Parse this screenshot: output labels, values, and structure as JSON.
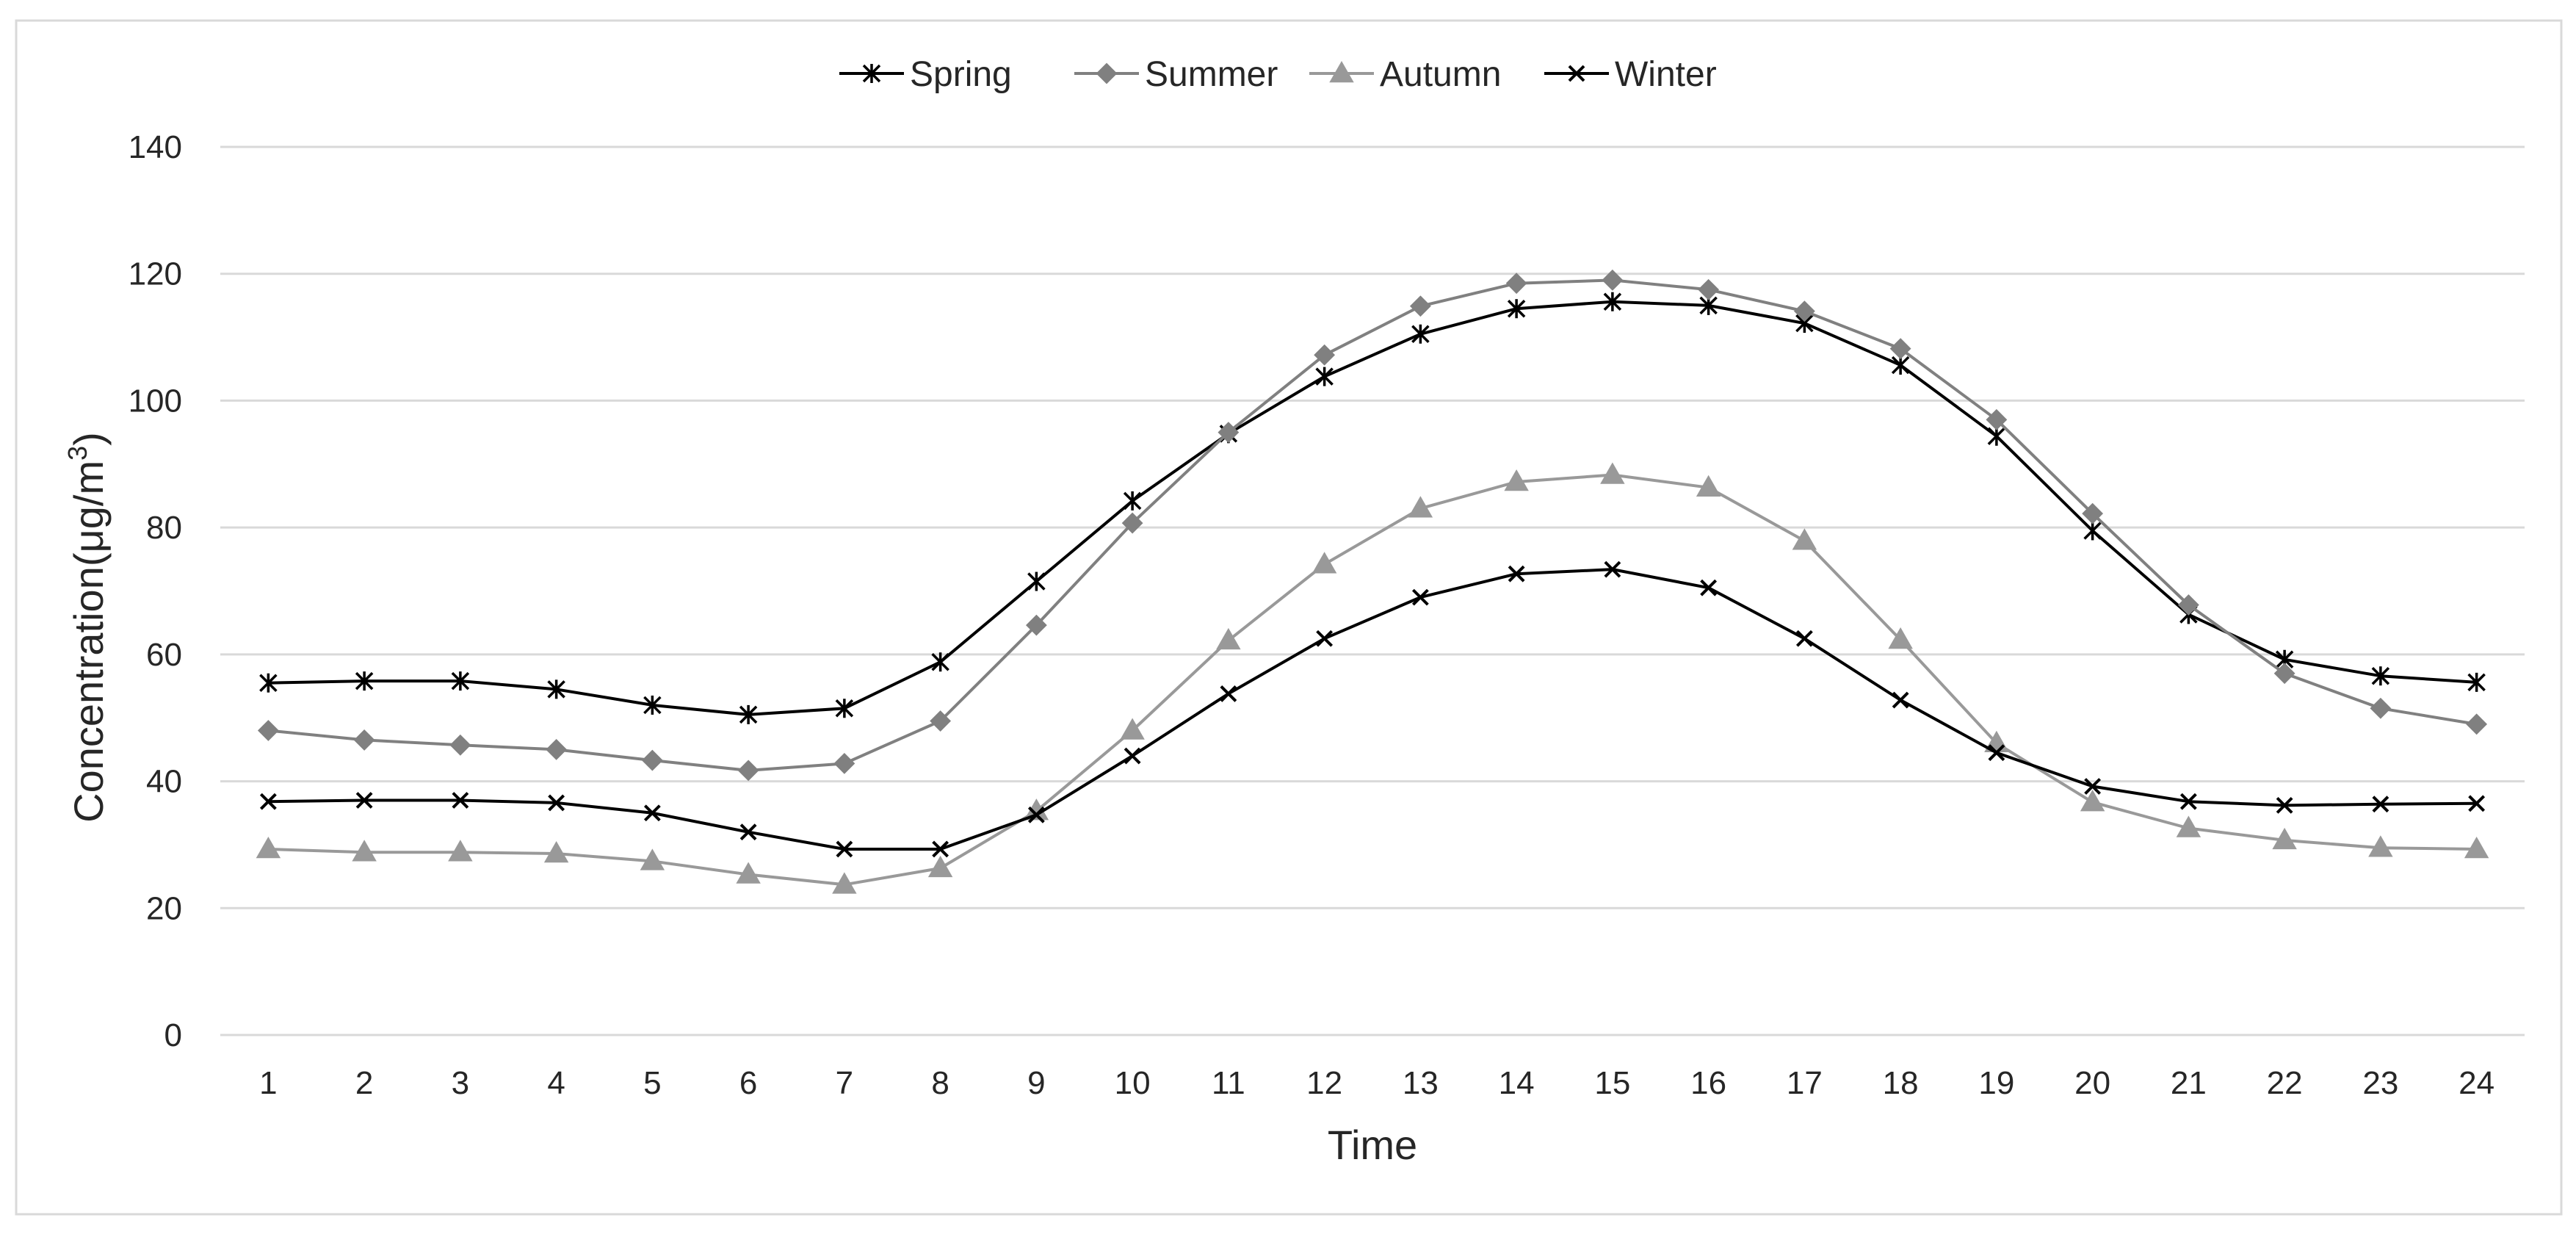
{
  "chart_data": {
    "type": "line",
    "title": "",
    "xlabel": "Time",
    "ylabel_main": "Concentration(μg/m",
    "ylabel_sup": "3",
    "ylabel_end": ")",
    "ylim": [
      0,
      140
    ],
    "yticks": [
      0,
      20,
      40,
      60,
      80,
      100,
      120,
      140
    ],
    "grid": "horizontal",
    "legend_position": "top-center",
    "x": [
      1,
      2,
      3,
      4,
      5,
      6,
      7,
      8,
      9,
      10,
      11,
      12,
      13,
      14,
      15,
      16,
      17,
      18,
      19,
      20,
      21,
      22,
      23,
      24
    ],
    "series": [
      {
        "name": "Spring",
        "marker": "asterisk",
        "color": "#000000",
        "values": [
          55.5,
          55.8,
          55.8,
          54.5,
          52.0,
          50.5,
          51.5,
          58.8,
          71.5,
          84.2,
          94.8,
          103.8,
          110.5,
          114.5,
          115.6,
          115.0,
          112.2,
          105.6,
          94.4,
          79.5,
          66.3,
          59.2,
          56.6,
          55.6
        ]
      },
      {
        "name": "Summer",
        "marker": "diamond",
        "color": "#808080",
        "values": [
          48.0,
          46.5,
          45.7,
          45.0,
          43.3,
          41.7,
          42.8,
          49.5,
          64.6,
          80.7,
          95.0,
          107.2,
          114.9,
          118.5,
          119.0,
          117.5,
          114.1,
          108.2,
          97.0,
          82.2,
          67.8,
          57.0,
          51.5,
          49.0
        ]
      },
      {
        "name": "Autumn",
        "marker": "triangle",
        "color": "#999999",
        "values": [
          29.3,
          28.8,
          28.8,
          28.6,
          27.4,
          25.3,
          23.7,
          26.3,
          35.3,
          48.0,
          62.2,
          74.2,
          83.0,
          87.2,
          88.3,
          86.3,
          77.9,
          62.3,
          46.0,
          36.7,
          32.6,
          30.7,
          29.5,
          29.3
        ]
      },
      {
        "name": "Winter",
        "marker": "cross",
        "color": "#000000",
        "values": [
          36.8,
          37.0,
          37.0,
          36.6,
          35.0,
          32.0,
          29.3,
          29.3,
          34.7,
          44.0,
          53.8,
          62.5,
          69.0,
          72.7,
          73.4,
          70.5,
          62.5,
          52.8,
          44.5,
          39.2,
          36.8,
          36.2,
          36.4,
          36.5
        ]
      }
    ]
  }
}
